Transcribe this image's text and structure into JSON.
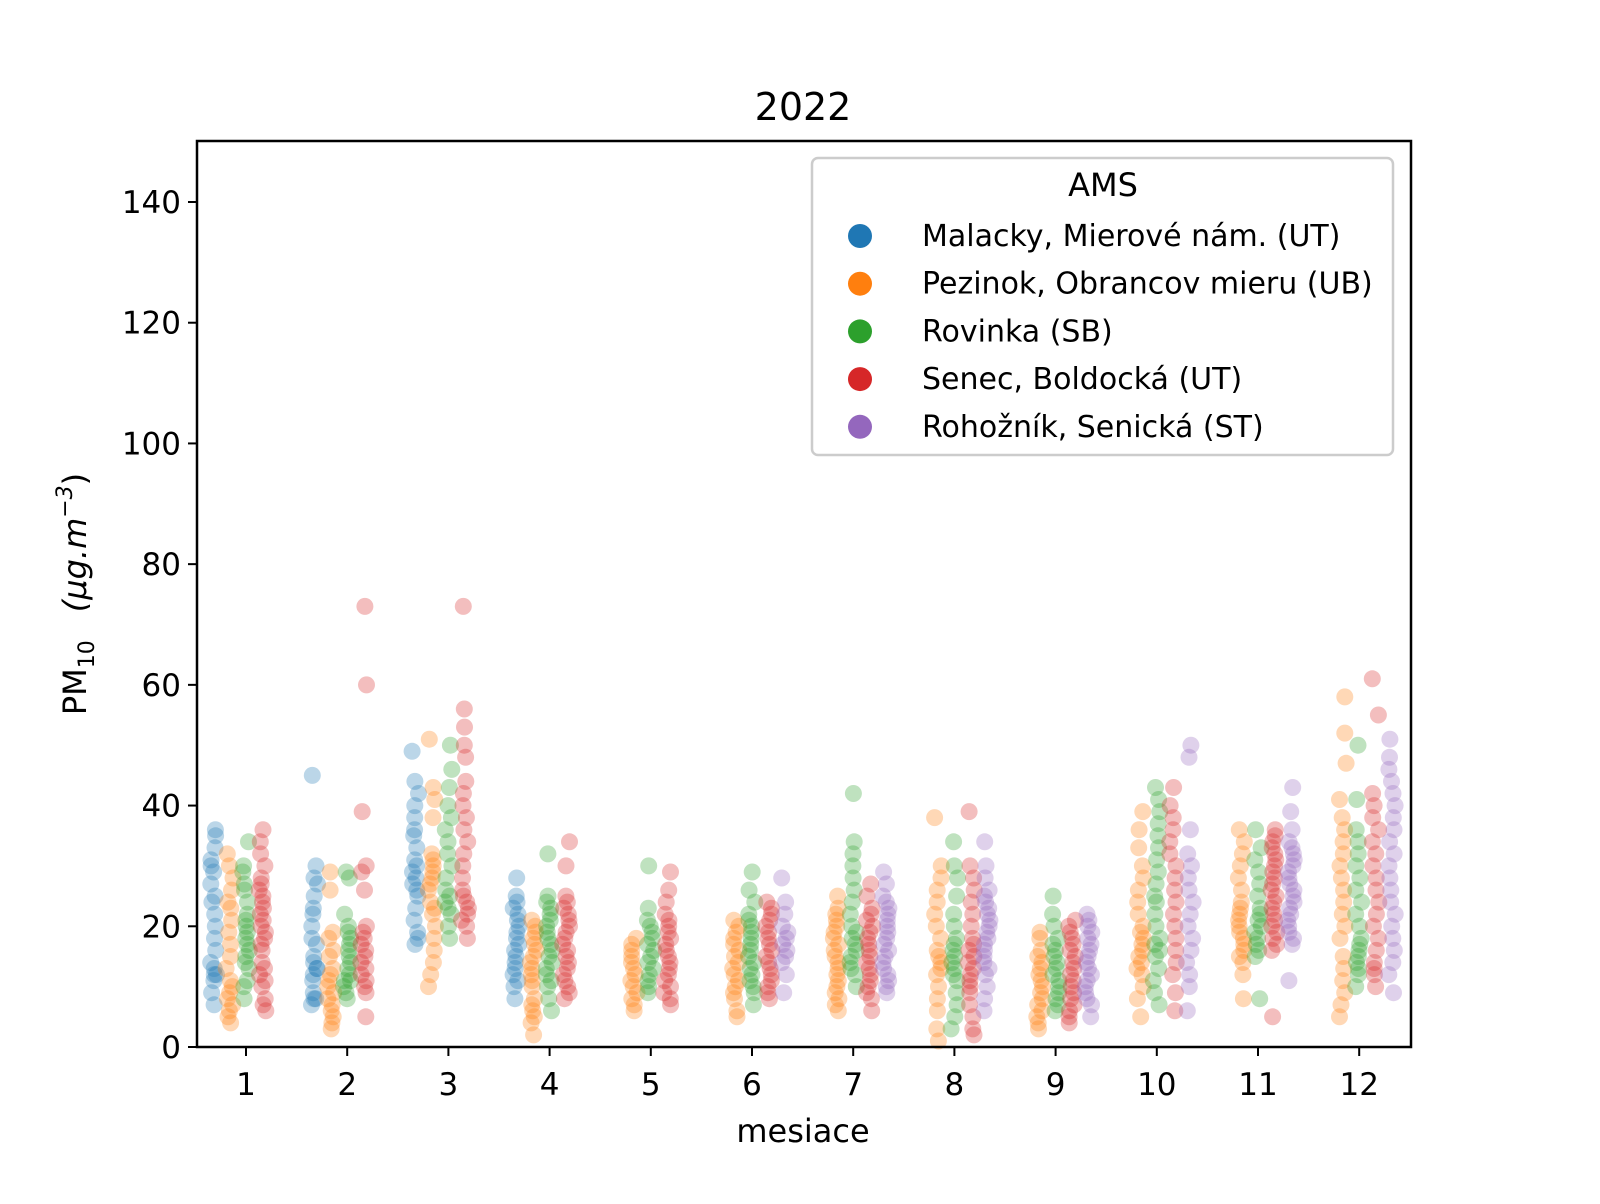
{
  "chart_data": {
    "type": "scatter",
    "title": "2022",
    "xlabel": "mesiace",
    "ylabel": "PM",
    "ylabel_subscript": "10",
    "ylabel_units": "(μg.m",
    "ylabel_units_sup": "−3",
    "ylabel_units_close": ")",
    "ylim": [
      0,
      150
    ],
    "y_ticks": [
      0,
      20,
      40,
      60,
      80,
      100,
      120,
      140
    ],
    "categories": [
      "1",
      "2",
      "3",
      "4",
      "5",
      "6",
      "7",
      "8",
      "9",
      "10",
      "11",
      "12"
    ],
    "grid": false,
    "legend": {
      "title": "AMS",
      "placement": "top-right"
    },
    "series": [
      {
        "name": "Malacky, Mierové nám. (UT)",
        "color": "#1f77b4",
        "values": [
          [
            7,
            9,
            11,
            12,
            12,
            13,
            14,
            16,
            18,
            20,
            22,
            24,
            25,
            27,
            29,
            30,
            31,
            33,
            35,
            36
          ],
          [
            7,
            8,
            8,
            9,
            11,
            12,
            13,
            13,
            14,
            15,
            17,
            18,
            20,
            22,
            23,
            25,
            27,
            28,
            30,
            45
          ],
          [
            17,
            18,
            19,
            21,
            23,
            25,
            26,
            27,
            28,
            29,
            30,
            31,
            33,
            35,
            36,
            38,
            40,
            42,
            44,
            49
          ],
          [
            8,
            10,
            11,
            12,
            13,
            14,
            15,
            16,
            17,
            18,
            19,
            20,
            21,
            22,
            23,
            24,
            25,
            28
          ],
          [],
          [],
          [],
          [],
          [],
          [],
          [],
          []
        ]
      },
      {
        "name": "Pezinok, Obrancov mieru (UB)",
        "color": "#ff7f0e",
        "values": [
          [
            4,
            5,
            6,
            7,
            8,
            9,
            10,
            11,
            13,
            15,
            17,
            19,
            21,
            23,
            24,
            26,
            28,
            30,
            32
          ],
          [
            3,
            4,
            5,
            6,
            7,
            8,
            9,
            10,
            11,
            12,
            13,
            15,
            16,
            18,
            19,
            26,
            29
          ],
          [
            10,
            12,
            14,
            16,
            18,
            20,
            22,
            23,
            24,
            26,
            27,
            28,
            29,
            30,
            31,
            32,
            38,
            41,
            43,
            51
          ],
          [
            2,
            4,
            5,
            6,
            7,
            8,
            10,
            11,
            12,
            13,
            14,
            15,
            16,
            17,
            18,
            19,
            20,
            21
          ],
          [
            6,
            7,
            8,
            9,
            10,
            11,
            12,
            13,
            14,
            15,
            16,
            17,
            18
          ],
          [
            5,
            6,
            8,
            9,
            10,
            11,
            12,
            13,
            14,
            15,
            16,
            17,
            18,
            19,
            20,
            21
          ],
          [
            6,
            7,
            8,
            9,
            10,
            11,
            12,
            13,
            14,
            15,
            16,
            17,
            18,
            19,
            20,
            21,
            22,
            23,
            25
          ],
          [
            1,
            3,
            6,
            8,
            10,
            12,
            13,
            14,
            15,
            16,
            18,
            20,
            22,
            24,
            26,
            28,
            30,
            38
          ],
          [
            3,
            4,
            5,
            6,
            7,
            8,
            9,
            10,
            11,
            12,
            13,
            14,
            15,
            16,
            18,
            19
          ],
          [
            5,
            8,
            10,
            12,
            13,
            14,
            15,
            16,
            17,
            18,
            19,
            20,
            22,
            24,
            26,
            28,
            30,
            33,
            36,
            39
          ],
          [
            8,
            12,
            14,
            15,
            16,
            17,
            18,
            19,
            20,
            21,
            22,
            23,
            24,
            26,
            28,
            30,
            32,
            34,
            36
          ],
          [
            5,
            7,
            9,
            11,
            13,
            15,
            18,
            20,
            22,
            24,
            26,
            28,
            30,
            32,
            34,
            36,
            38,
            41,
            47,
            52,
            58
          ]
        ]
      },
      {
        "name": "Rovinka (SB)",
        "color": "#2ca02c",
        "values": [
          [
            8,
            10,
            11,
            13,
            14,
            15,
            16,
            17,
            18,
            19,
            20,
            21,
            22,
            24,
            26,
            27,
            29,
            30,
            34
          ],
          [
            8,
            9,
            10,
            11,
            11,
            12,
            13,
            14,
            15,
            16,
            17,
            18,
            19,
            20,
            22,
            28,
            29
          ],
          [
            18,
            20,
            22,
            23,
            24,
            25,
            26,
            28,
            30,
            32,
            34,
            36,
            38,
            40,
            43,
            46,
            50
          ],
          [
            6,
            8,
            10,
            11,
            12,
            13,
            14,
            15,
            16,
            17,
            18,
            19,
            20,
            21,
            22,
            23,
            24,
            25,
            32
          ],
          [
            9,
            10,
            11,
            12,
            13,
            14,
            15,
            16,
            17,
            18,
            19,
            20,
            21,
            23,
            30
          ],
          [
            7,
            9,
            10,
            11,
            12,
            13,
            14,
            15,
            16,
            17,
            18,
            19,
            20,
            21,
            22,
            24,
            26,
            29
          ],
          [
            10,
            12,
            13,
            14,
            15,
            16,
            17,
            18,
            19,
            20,
            22,
            24,
            26,
            28,
            30,
            32,
            34,
            42
          ],
          [
            3,
            5,
            7,
            9,
            11,
            12,
            13,
            14,
            15,
            16,
            17,
            18,
            20,
            22,
            25,
            28,
            30,
            34
          ],
          [
            6,
            7,
            8,
            9,
            10,
            11,
            12,
            13,
            14,
            15,
            16,
            17,
            18,
            20,
            22,
            25
          ],
          [
            7,
            9,
            11,
            13,
            15,
            16,
            17,
            18,
            20,
            22,
            24,
            25,
            27,
            29,
            31,
            33,
            35,
            37,
            39,
            41,
            43
          ],
          [
            8,
            15,
            16,
            17,
            18,
            19,
            20,
            21,
            22,
            23,
            25,
            27,
            29,
            31,
            33,
            36
          ],
          [
            10,
            12,
            13,
            14,
            15,
            16,
            17,
            18,
            20,
            22,
            24,
            26,
            28,
            30,
            32,
            34,
            36,
            41,
            50
          ]
        ]
      },
      {
        "name": "Senec, Boldocká (UT)",
        "color": "#d62728",
        "values": [
          [
            6,
            7,
            8,
            10,
            11,
            12,
            13,
            14,
            16,
            17,
            18,
            19,
            20,
            21,
            22,
            23,
            24,
            25,
            26,
            27,
            28,
            30,
            32,
            34,
            36
          ],
          [
            5,
            9,
            10,
            11,
            12,
            13,
            14,
            15,
            16,
            17,
            18,
            19,
            20,
            26,
            29,
            30,
            39,
            60,
            73
          ],
          [
            18,
            20,
            21,
            22,
            23,
            24,
            25,
            26,
            28,
            30,
            32,
            34,
            36,
            38,
            40,
            42,
            44,
            48,
            50,
            53,
            56,
            73
          ],
          [
            8,
            9,
            10,
            11,
            12,
            13,
            14,
            15,
            16,
            17,
            18,
            19,
            20,
            21,
            22,
            23,
            24,
            25,
            30,
            34
          ],
          [
            7,
            8,
            9,
            10,
            11,
            12,
            13,
            14,
            15,
            16,
            17,
            18,
            19,
            20,
            21,
            22,
            24,
            26,
            29
          ],
          [
            8,
            9,
            10,
            11,
            12,
            13,
            14,
            15,
            16,
            17,
            18,
            19,
            20,
            21,
            22,
            23,
            24
          ],
          [
            6,
            8,
            9,
            10,
            11,
            12,
            13,
            14,
            15,
            16,
            17,
            18,
            19,
            20,
            21,
            22,
            23,
            25,
            27
          ],
          [
            2,
            3,
            5,
            7,
            9,
            10,
            11,
            12,
            13,
            14,
            15,
            16,
            17,
            18,
            20,
            22,
            24,
            26,
            28,
            30,
            39
          ],
          [
            4,
            5,
            6,
            7,
            8,
            9,
            10,
            11,
            12,
            13,
            14,
            15,
            16,
            17,
            18,
            19,
            20,
            21
          ],
          [
            6,
            9,
            12,
            14,
            16,
            18,
            20,
            22,
            24,
            26,
            28,
            30,
            32,
            34,
            36,
            38,
            40,
            43
          ],
          [
            5,
            16,
            17,
            18,
            19,
            20,
            21,
            22,
            23,
            24,
            25,
            26,
            27,
            28,
            29,
            30,
            31,
            32,
            33,
            34,
            35,
            36
          ],
          [
            10,
            12,
            13,
            14,
            16,
            18,
            20,
            22,
            24,
            26,
            28,
            30,
            32,
            34,
            36,
            38,
            40,
            42,
            55,
            61
          ]
        ]
      },
      {
        "name": "Rohožník, Senická (ST)",
        "color": "#9467bd",
        "values": [
          [],
          [],
          [],
          [],
          [],
          [
            9,
            12,
            14,
            15,
            16,
            17,
            18,
            19,
            20,
            22,
            24,
            28
          ],
          [
            9,
            10,
            11,
            12,
            13,
            14,
            15,
            16,
            17,
            18,
            19,
            20,
            21,
            22,
            23,
            24,
            25,
            27,
            29
          ],
          [
            6,
            8,
            10,
            12,
            13,
            14,
            15,
            16,
            17,
            18,
            19,
            20,
            21,
            22,
            23,
            24,
            25,
            26,
            28,
            30,
            34
          ],
          [
            5,
            7,
            8,
            9,
            10,
            11,
            12,
            13,
            14,
            15,
            16,
            17,
            18,
            19,
            20,
            21,
            22
          ],
          [
            6,
            10,
            12,
            14,
            16,
            18,
            20,
            22,
            24,
            26,
            28,
            30,
            32,
            36,
            48,
            50
          ],
          [
            11,
            17,
            18,
            19,
            20,
            21,
            22,
            23,
            24,
            25,
            26,
            27,
            28,
            29,
            30,
            31,
            32,
            33,
            34,
            36,
            39,
            43
          ],
          [
            9,
            12,
            14,
            16,
            18,
            20,
            22,
            24,
            26,
            28,
            30,
            32,
            34,
            36,
            38,
            40,
            42,
            44,
            46,
            48,
            51
          ]
        ]
      }
    ]
  }
}
